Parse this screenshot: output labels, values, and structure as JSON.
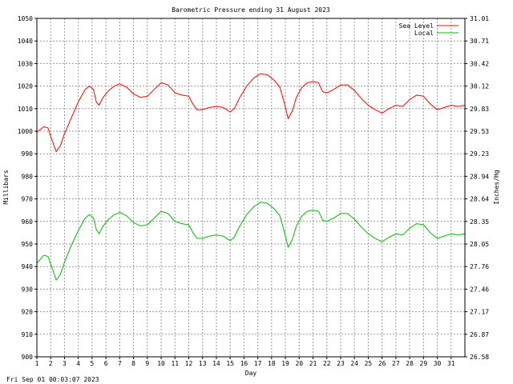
{
  "timestamp": "Fri Sep 01 00:03:07 2023",
  "chart_data": {
    "type": "line",
    "title": "Barometric Pressure ending 31 August 2023",
    "xlabel": "Day",
    "ylabel": "Millibars",
    "y2label": "Inches/Hg",
    "xlim": [
      1,
      32
    ],
    "ylim": [
      900,
      1050
    ],
    "x_ticks": [
      "1",
      "2",
      "3",
      "4",
      "5",
      "6",
      "7",
      "8",
      "9",
      "10",
      "11",
      "12",
      "13",
      "14",
      "15",
      "16",
      "17",
      "18",
      "19",
      "20",
      "21",
      "22",
      "23",
      "24",
      "25",
      "26",
      "27",
      "28",
      "29",
      "30",
      "31"
    ],
    "y_ticks": [
      900,
      910,
      920,
      930,
      940,
      950,
      960,
      970,
      980,
      990,
      1000,
      1010,
      1020,
      1030,
      1040,
      1050
    ],
    "y2_ticks": [
      "26.58",
      "26.87",
      "27.17",
      "27.46",
      "27.76",
      "28.05",
      "28.35",
      "28.64",
      "28.94",
      "29.23",
      "29.53",
      "29.83",
      "30.12",
      "30.42",
      "30.71",
      "31.01"
    ],
    "grid": true,
    "legend_position": "top-right",
    "series": [
      {
        "name": "Sea Level",
        "color": "#ff0000",
        "points": [
          [
            1.0,
            999.5
          ],
          [
            1.5,
            1002.0
          ],
          [
            1.8,
            1001.5
          ],
          [
            2.1,
            996.0
          ],
          [
            2.4,
            991.0
          ],
          [
            2.7,
            993.5
          ],
          [
            3.0,
            999.0
          ],
          [
            3.5,
            1006.0
          ],
          [
            4.0,
            1013.0
          ],
          [
            4.5,
            1018.5
          ],
          [
            4.8,
            1020.0
          ],
          [
            5.1,
            1018.5
          ],
          [
            5.3,
            1013.0
          ],
          [
            5.5,
            1011.5
          ],
          [
            5.8,
            1015.0
          ],
          [
            6.2,
            1018.0
          ],
          [
            6.6,
            1020.0
          ],
          [
            7.0,
            1021.0
          ],
          [
            7.5,
            1019.5
          ],
          [
            8.0,
            1016.5
          ],
          [
            8.5,
            1015.0
          ],
          [
            9.0,
            1015.5
          ],
          [
            9.5,
            1018.5
          ],
          [
            10.0,
            1021.5
          ],
          [
            10.5,
            1020.5
          ],
          [
            11.0,
            1017.0
          ],
          [
            11.5,
            1016.0
          ],
          [
            12.0,
            1015.5
          ],
          [
            12.3,
            1012.0
          ],
          [
            12.6,
            1009.5
          ],
          [
            13.0,
            1009.5
          ],
          [
            13.5,
            1010.5
          ],
          [
            14.0,
            1011.0
          ],
          [
            14.5,
            1010.5
          ],
          [
            15.0,
            1008.5
          ],
          [
            15.3,
            1010.0
          ],
          [
            15.7,
            1015.0
          ],
          [
            16.2,
            1020.0
          ],
          [
            16.7,
            1023.5
          ],
          [
            17.2,
            1025.5
          ],
          [
            17.7,
            1025.0
          ],
          [
            18.2,
            1022.5
          ],
          [
            18.6,
            1019.5
          ],
          [
            18.9,
            1013.0
          ],
          [
            19.2,
            1005.5
          ],
          [
            19.5,
            1009.0
          ],
          [
            19.8,
            1015.0
          ],
          [
            20.2,
            1019.5
          ],
          [
            20.6,
            1021.5
          ],
          [
            21.0,
            1022.0
          ],
          [
            21.4,
            1021.5
          ],
          [
            21.7,
            1017.5
          ],
          [
            22.0,
            1017.0
          ],
          [
            22.5,
            1018.5
          ],
          [
            23.0,
            1020.5
          ],
          [
            23.5,
            1020.5
          ],
          [
            24.0,
            1018.0
          ],
          [
            24.5,
            1014.5
          ],
          [
            25.0,
            1011.5
          ],
          [
            25.5,
            1009.5
          ],
          [
            26.0,
            1008.0
          ],
          [
            26.5,
            1010.0
          ],
          [
            27.0,
            1011.5
          ],
          [
            27.5,
            1011.0
          ],
          [
            28.0,
            1014.0
          ],
          [
            28.5,
            1016.0
          ],
          [
            29.0,
            1015.5
          ],
          [
            29.5,
            1012.0
          ],
          [
            30.0,
            1009.5
          ],
          [
            30.5,
            1010.5
          ],
          [
            31.0,
            1011.5
          ],
          [
            31.5,
            1011.0
          ],
          [
            32.0,
            1011.5
          ]
        ]
      },
      {
        "name": "Local",
        "color": "#00bb00",
        "points": [
          [
            1.0,
            941.5
          ],
          [
            1.5,
            945.0
          ],
          [
            1.8,
            944.5
          ],
          [
            2.1,
            939.5
          ],
          [
            2.4,
            934.0
          ],
          [
            2.7,
            936.5
          ],
          [
            3.0,
            942.0
          ],
          [
            3.5,
            949.5
          ],
          [
            4.0,
            956.0
          ],
          [
            4.5,
            961.5
          ],
          [
            4.8,
            963.0
          ],
          [
            5.1,
            961.5
          ],
          [
            5.3,
            956.5
          ],
          [
            5.5,
            954.5
          ],
          [
            5.8,
            958.0
          ],
          [
            6.2,
            961.0
          ],
          [
            6.6,
            963.0
          ],
          [
            7.0,
            964.0
          ],
          [
            7.5,
            962.5
          ],
          [
            8.0,
            959.5
          ],
          [
            8.5,
            958.0
          ],
          [
            9.0,
            958.5
          ],
          [
            9.5,
            961.5
          ],
          [
            10.0,
            964.5
          ],
          [
            10.5,
            963.5
          ],
          [
            11.0,
            960.0
          ],
          [
            11.5,
            959.0
          ],
          [
            12.0,
            958.5
          ],
          [
            12.3,
            955.0
          ],
          [
            12.6,
            952.5
          ],
          [
            13.0,
            952.5
          ],
          [
            13.5,
            953.5
          ],
          [
            14.0,
            954.0
          ],
          [
            14.5,
            953.5
          ],
          [
            15.0,
            951.5
          ],
          [
            15.3,
            953.0
          ],
          [
            15.7,
            958.0
          ],
          [
            16.2,
            963.0
          ],
          [
            16.7,
            966.5
          ],
          [
            17.2,
            968.5
          ],
          [
            17.7,
            968.0
          ],
          [
            18.2,
            965.5
          ],
          [
            18.6,
            962.5
          ],
          [
            18.9,
            956.0
          ],
          [
            19.2,
            948.5
          ],
          [
            19.5,
            952.0
          ],
          [
            19.8,
            958.0
          ],
          [
            20.2,
            962.5
          ],
          [
            20.6,
            964.5
          ],
          [
            21.0,
            965.0
          ],
          [
            21.4,
            964.5
          ],
          [
            21.7,
            960.5
          ],
          [
            22.0,
            960.0
          ],
          [
            22.5,
            961.5
          ],
          [
            23.0,
            963.5
          ],
          [
            23.5,
            963.5
          ],
          [
            24.0,
            961.0
          ],
          [
            24.5,
            957.5
          ],
          [
            25.0,
            954.5
          ],
          [
            25.5,
            952.5
          ],
          [
            26.0,
            951.0
          ],
          [
            26.5,
            953.0
          ],
          [
            27.0,
            954.5
          ],
          [
            27.5,
            954.0
          ],
          [
            28.0,
            957.0
          ],
          [
            28.5,
            959.0
          ],
          [
            29.0,
            958.5
          ],
          [
            29.5,
            955.0
          ],
          [
            30.0,
            952.5
          ],
          [
            30.5,
            953.5
          ],
          [
            31.0,
            954.5
          ],
          [
            31.5,
            954.0
          ],
          [
            32.0,
            954.5
          ]
        ]
      }
    ]
  }
}
